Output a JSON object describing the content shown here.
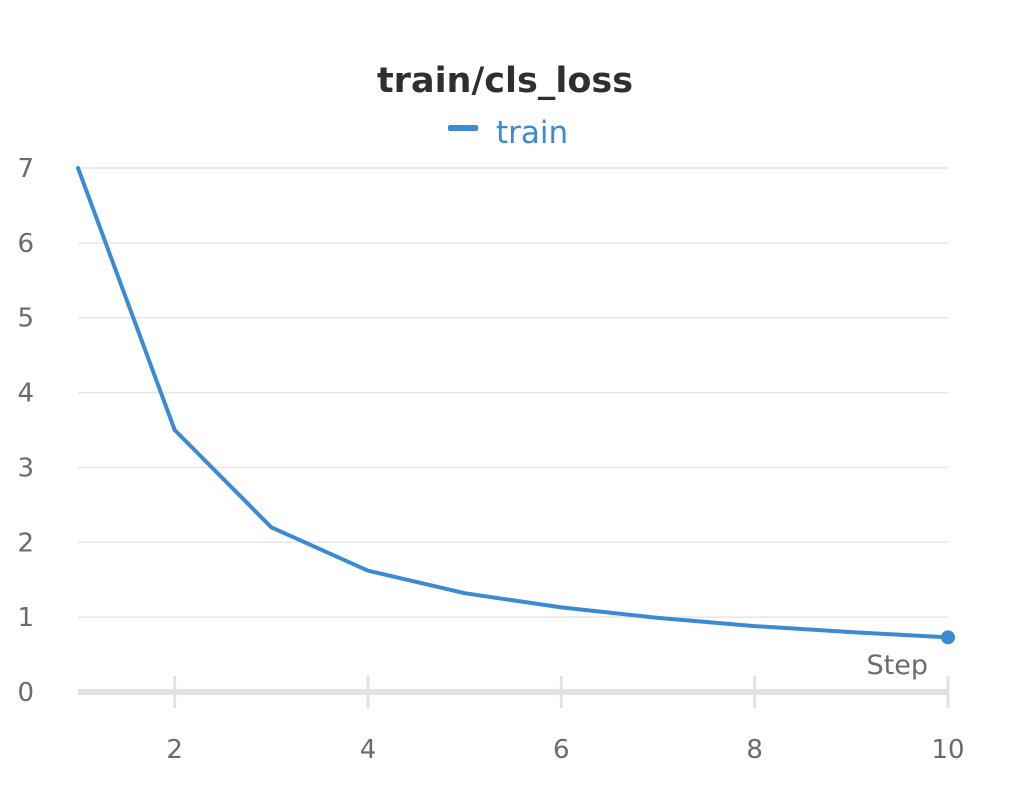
{
  "chart_data": {
    "type": "line",
    "title": "train/cls_loss",
    "xlabel": "Step",
    "ylabel": "",
    "xlim": [
      1,
      10
    ],
    "ylim": [
      0,
      7
    ],
    "x_ticks": [
      "2",
      "4",
      "6",
      "8",
      "10"
    ],
    "y_ticks": [
      "0",
      "1",
      "2",
      "3",
      "4",
      "5",
      "6",
      "7"
    ],
    "grid": true,
    "legend_position": "top-center",
    "series": [
      {
        "name": "train",
        "color": "#3a8bd4",
        "x": [
          1,
          2,
          3,
          4,
          5,
          6,
          7,
          8,
          9,
          10
        ],
        "y": [
          7.0,
          3.5,
          2.2,
          1.62,
          1.32,
          1.13,
          0.99,
          0.88,
          0.8,
          0.73
        ]
      }
    ]
  }
}
